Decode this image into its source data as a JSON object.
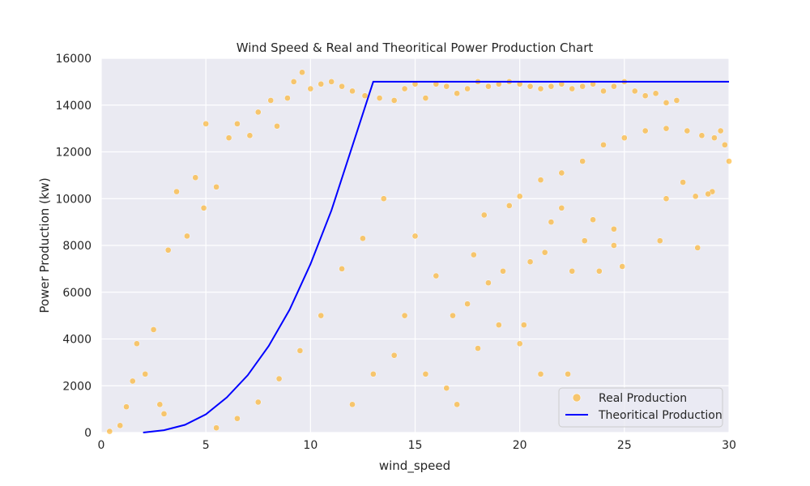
{
  "chart_data": {
    "type": "scatter",
    "title": "Wind Speed & Real and Theoritical Power Production Chart",
    "xlabel": "wind_speed",
    "ylabel": "Power Production (kw)",
    "xlim": [
      0,
      30
    ],
    "ylim": [
      0,
      16000
    ],
    "xticks": [
      0,
      5,
      10,
      15,
      20,
      25,
      30
    ],
    "yticks": [
      0,
      2000,
      4000,
      6000,
      8000,
      10000,
      12000,
      14000,
      16000
    ],
    "grid": true,
    "legend_position": "lower-right",
    "colors": {
      "background": "#eaeaf2",
      "grid": "#ffffff",
      "real": "#ffa500",
      "theoretical": "#0000ff"
    },
    "series": [
      {
        "name": "Real Production",
        "kind": "scatter",
        "color": "#ffa500",
        "points": [
          [
            0.4,
            50
          ],
          [
            0.9,
            300
          ],
          [
            1.2,
            1100
          ],
          [
            1.5,
            2200
          ],
          [
            1.7,
            3800
          ],
          [
            2.1,
            2500
          ],
          [
            2.5,
            4400
          ],
          [
            2.8,
            1200
          ],
          [
            3.0,
            800
          ],
          [
            3.2,
            7800
          ],
          [
            3.6,
            10300
          ],
          [
            4.1,
            8400
          ],
          [
            4.5,
            10900
          ],
          [
            4.9,
            9600
          ],
          [
            5.0,
            13200
          ],
          [
            5.5,
            10500
          ],
          [
            6.1,
            12600
          ],
          [
            6.5,
            13200
          ],
          [
            7.1,
            12700
          ],
          [
            7.5,
            13700
          ],
          [
            8.1,
            14200
          ],
          [
            8.4,
            13100
          ],
          [
            8.9,
            14300
          ],
          [
            9.2,
            15000
          ],
          [
            9.6,
            15400
          ],
          [
            10.0,
            14700
          ],
          [
            10.5,
            14900
          ],
          [
            11.0,
            15000
          ],
          [
            11.5,
            14800
          ],
          [
            12.0,
            14600
          ],
          [
            12.6,
            14400
          ],
          [
            13.3,
            14300
          ],
          [
            14.0,
            14200
          ],
          [
            14.5,
            14700
          ],
          [
            15.0,
            14900
          ],
          [
            15.5,
            14300
          ],
          [
            16.0,
            14900
          ],
          [
            16.5,
            14800
          ],
          [
            17.0,
            14500
          ],
          [
            17.5,
            14700
          ],
          [
            18.0,
            15000
          ],
          [
            18.5,
            14800
          ],
          [
            19.0,
            14900
          ],
          [
            19.5,
            15000
          ],
          [
            20.0,
            14900
          ],
          [
            20.5,
            14800
          ],
          [
            21.0,
            14700
          ],
          [
            21.5,
            14800
          ],
          [
            22.0,
            14900
          ],
          [
            22.5,
            14700
          ],
          [
            23.0,
            14800
          ],
          [
            23.5,
            14900
          ],
          [
            24.0,
            14600
          ],
          [
            24.5,
            14800
          ],
          [
            25.0,
            15000
          ],
          [
            25.5,
            14600
          ],
          [
            26.0,
            14400
          ],
          [
            26.5,
            14500
          ],
          [
            27.0,
            14100
          ],
          [
            27.5,
            14200
          ],
          [
            14.5,
            5000
          ],
          [
            15.5,
            2500
          ],
          [
            16.5,
            1900
          ],
          [
            17.0,
            1200
          ],
          [
            18.0,
            3600
          ],
          [
            18.5,
            6400
          ],
          [
            19.0,
            4600
          ],
          [
            20.0,
            3800
          ],
          [
            20.2,
            4600
          ],
          [
            21.0,
            2500
          ],
          [
            22.3,
            2500
          ],
          [
            22.5,
            6900
          ],
          [
            23.1,
            8200
          ],
          [
            23.8,
            6900
          ],
          [
            24.5,
            8000
          ],
          [
            24.9,
            7100
          ],
          [
            26.7,
            8200
          ],
          [
            28.5,
            7900
          ],
          [
            29.2,
            10300
          ],
          [
            30.0,
            11600
          ],
          [
            29.8,
            12300
          ],
          [
            29.6,
            12900
          ],
          [
            28.4,
            10100
          ],
          [
            27.8,
            10700
          ],
          [
            27.0,
            10000
          ],
          [
            29.0,
            10200
          ],
          [
            21.5,
            9000
          ],
          [
            22.0,
            9600
          ],
          [
            23.5,
            9100
          ],
          [
            24.5,
            8700
          ],
          [
            20.5,
            7300
          ],
          [
            21.2,
            7700
          ],
          [
            19.2,
            6900
          ],
          [
            17.8,
            7600
          ],
          [
            16.0,
            6700
          ],
          [
            15.0,
            8400
          ],
          [
            13.5,
            10000
          ],
          [
            12.5,
            8300
          ],
          [
            11.5,
            7000
          ],
          [
            10.5,
            5000
          ],
          [
            9.5,
            3500
          ],
          [
            8.5,
            2300
          ],
          [
            7.5,
            1300
          ],
          [
            6.5,
            600
          ],
          [
            5.5,
            200
          ],
          [
            12.0,
            1200
          ],
          [
            13.0,
            2500
          ],
          [
            14.0,
            3300
          ],
          [
            16.8,
            5000
          ],
          [
            17.5,
            5500
          ],
          [
            18.3,
            9300
          ],
          [
            19.5,
            9700
          ],
          [
            20.0,
            10100
          ],
          [
            21.0,
            10800
          ],
          [
            22.0,
            11100
          ],
          [
            23.0,
            11600
          ],
          [
            24.0,
            12300
          ],
          [
            25.0,
            12600
          ],
          [
            26.0,
            12900
          ],
          [
            27.0,
            13000
          ],
          [
            28.0,
            12900
          ],
          [
            28.7,
            12700
          ],
          [
            29.3,
            12600
          ]
        ]
      },
      {
        "name": "Theoritical Production",
        "kind": "line",
        "color": "#0000ff",
        "points": [
          [
            2,
            0
          ],
          [
            3,
            100
          ],
          [
            4,
            330
          ],
          [
            5,
            780
          ],
          [
            6,
            1500
          ],
          [
            7,
            2450
          ],
          [
            8,
            3700
          ],
          [
            9,
            5250
          ],
          [
            10,
            7200
          ],
          [
            11,
            9500
          ],
          [
            12,
            12250
          ],
          [
            13,
            15000
          ],
          [
            30,
            15000
          ]
        ]
      }
    ]
  }
}
